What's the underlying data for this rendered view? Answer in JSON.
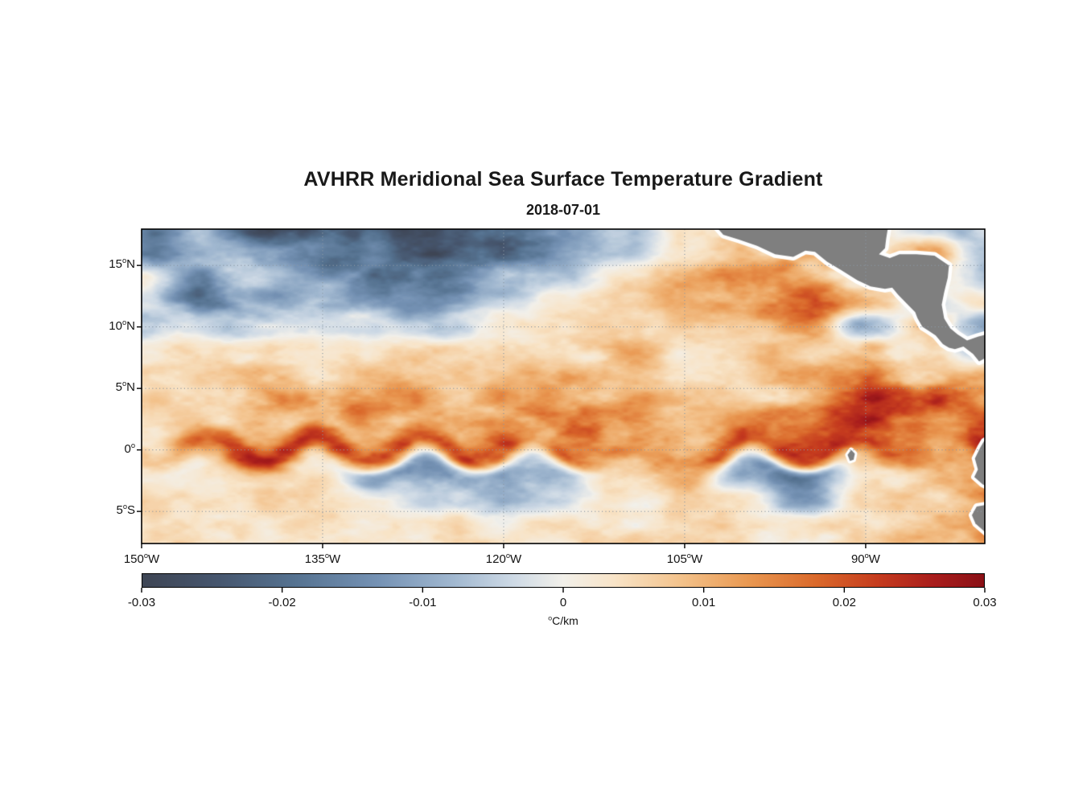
{
  "chart_data": {
    "type": "heatmap",
    "title": "AVHRR Meridional Sea Surface Temperature Gradient",
    "subtitle": "2018-07-01",
    "axes": {
      "lon_min": -150.0,
      "lon_max": -80.13,
      "lat_min": -7.61,
      "lat_max": 17.95,
      "grid": "dotted"
    },
    "x_ticks": [
      {
        "value": -150,
        "label": "150°W"
      },
      {
        "value": -135,
        "label": "135°W"
      },
      {
        "value": -120,
        "label": "120°W"
      },
      {
        "value": -105,
        "label": "105°W"
      },
      {
        "value": -90,
        "label": "90°W"
      }
    ],
    "y_ticks": [
      {
        "value": 15,
        "label": "15°N"
      },
      {
        "value": 10,
        "label": "10°N"
      },
      {
        "value": 5,
        "label": "5°N"
      },
      {
        "value": 0,
        "label": "0°"
      },
      {
        "value": -5,
        "label": "5°S"
      }
    ],
    "colorbar": {
      "min": -0.03,
      "max": 0.03,
      "ticks": [
        "-0.03",
        "-0.02",
        "-0.01",
        "0",
        "0.01",
        "0.02",
        "0.03"
      ],
      "label": "°C/km"
    },
    "colormap_stops": [
      [
        0.0,
        "#3e4554"
      ],
      [
        0.09,
        "#46566e"
      ],
      [
        0.18,
        "#557290"
      ],
      [
        0.28,
        "#7592b4"
      ],
      [
        0.37,
        "#a1b8d0"
      ],
      [
        0.44,
        "#cdd9e5"
      ],
      [
        0.5,
        "#f2f0ea"
      ],
      [
        0.56,
        "#f8e4c8"
      ],
      [
        0.64,
        "#f3c28b"
      ],
      [
        0.72,
        "#e99851"
      ],
      [
        0.8,
        "#da692b"
      ],
      [
        0.875,
        "#c53b1e"
      ],
      [
        0.94,
        "#a91d1c"
      ],
      [
        1.0,
        "#8a1016"
      ]
    ],
    "land_color": "#7f7f7f",
    "grid": {
      "units": "°C/km",
      "values_scale": 0.001,
      "lons": [
        -150,
        -145,
        -140,
        -135,
        -130,
        -125,
        -120,
        -115,
        -110,
        -105,
        -100,
        -95,
        -90,
        -85,
        -80
      ],
      "lats": [
        18,
        16,
        14,
        12,
        10,
        8,
        6,
        4,
        2,
        0,
        -2,
        -4,
        -6,
        -8
      ],
      "values": [
        [
          -15,
          -8,
          -24,
          -26,
          -22,
          -26,
          -24,
          -10,
          -6,
          2,
          6,
          15,
          2,
          -4,
          -6
        ],
        [
          -18,
          -6,
          -12,
          -20,
          -15,
          -28,
          -22,
          -12,
          -4,
          4,
          10,
          12,
          3,
          12,
          -8
        ],
        [
          2,
          -16,
          -6,
          -10,
          -18,
          -20,
          -8,
          -6,
          3,
          8,
          14,
          10,
          4,
          2,
          -6
        ],
        [
          -4,
          -18,
          -10,
          -10,
          -10,
          -12,
          -4,
          2,
          4,
          8,
          12,
          16,
          12,
          -6,
          4
        ],
        [
          -10,
          -4,
          -6,
          -4,
          -2,
          -4,
          2,
          3,
          4,
          6,
          8,
          14,
          -12,
          8,
          -10
        ],
        [
          4,
          5,
          6,
          4,
          5,
          6,
          4,
          5,
          10,
          4,
          6,
          5,
          10,
          4,
          -8
        ],
        [
          3,
          5,
          8,
          6,
          8,
          6,
          6,
          8,
          6,
          6,
          5,
          10,
          14,
          10,
          8
        ],
        [
          5,
          8,
          12,
          16,
          14,
          10,
          10,
          14,
          12,
          8,
          6,
          12,
          22,
          24,
          16
        ],
        [
          4,
          6,
          8,
          10,
          8,
          10,
          14,
          18,
          12,
          8,
          10,
          16,
          22,
          16,
          20
        ],
        [
          6,
          14,
          22,
          26,
          24,
          22,
          16,
          18,
          14,
          12,
          20,
          26,
          20,
          10,
          26
        ],
        [
          2,
          4,
          6,
          2,
          -10,
          -14,
          -10,
          -8,
          6,
          12,
          -10,
          -16,
          4,
          8,
          12
        ],
        [
          4,
          3,
          4,
          5,
          2,
          -6,
          -8,
          -4,
          3,
          4,
          2,
          -10,
          4,
          6,
          14
        ],
        [
          3,
          4,
          3,
          4,
          5,
          4,
          2,
          3,
          4,
          5,
          4,
          3,
          5,
          8,
          12
        ],
        [
          2,
          3,
          3,
          4,
          3,
          3,
          4,
          3,
          4,
          4,
          5,
          4,
          4,
          6,
          10
        ]
      ]
    },
    "land_polygons": {
      "central_america": [
        [
          -102.6,
          18.4
        ],
        [
          -101.8,
          17.5
        ],
        [
          -100.5,
          17.1
        ],
        [
          -99.0,
          16.6
        ],
        [
          -97.5,
          15.9
        ],
        [
          -96.0,
          15.7
        ],
        [
          -95.0,
          16.2
        ],
        [
          -94.2,
          16.1
        ],
        [
          -93.2,
          15.3
        ],
        [
          -92.0,
          14.6
        ],
        [
          -90.7,
          13.8
        ],
        [
          -89.6,
          13.3
        ],
        [
          -88.4,
          13.1
        ],
        [
          -87.8,
          13.2
        ],
        [
          -87.3,
          12.6
        ],
        [
          -86.7,
          12.0
        ],
        [
          -85.9,
          11.2
        ],
        [
          -85.7,
          10.7
        ],
        [
          -85.3,
          10.0
        ],
        [
          -84.8,
          9.7
        ],
        [
          -84.2,
          9.3
        ],
        [
          -83.6,
          8.6
        ],
        [
          -83.1,
          8.3
        ],
        [
          -82.6,
          8.2
        ],
        [
          -81.9,
          8.4
        ],
        [
          -81.1,
          7.8
        ],
        [
          -80.6,
          7.2
        ],
        [
          -80.0,
          7.5
        ],
        [
          -79.6,
          7.8
        ],
        [
          -79.6,
          9.5
        ],
        [
          -80.7,
          9.2
        ],
        [
          -81.6,
          8.9
        ],
        [
          -82.4,
          9.4
        ],
        [
          -83.0,
          9.9
        ],
        [
          -83.5,
          10.7
        ],
        [
          -83.7,
          11.8
        ],
        [
          -83.5,
          12.8
        ],
        [
          -83.2,
          14.0
        ],
        [
          -83.1,
          15.0
        ],
        [
          -84.3,
          15.8
        ],
        [
          -85.8,
          15.9
        ],
        [
          -87.2,
          15.9
        ],
        [
          -88.0,
          15.6
        ],
        [
          -88.9,
          15.9
        ],
        [
          -88.4,
          16.4
        ],
        [
          -88.3,
          17.2
        ],
        [
          -88.1,
          18.4
        ]
      ],
      "ecuador": [
        [
          -79.6,
          1.0
        ],
        [
          -80.2,
          0.7
        ],
        [
          -80.5,
          0.2
        ],
        [
          -80.95,
          -0.7
        ],
        [
          -80.7,
          -1.6
        ],
        [
          -81.0,
          -2.2
        ],
        [
          -80.3,
          -2.8
        ],
        [
          -79.6,
          -3.1
        ]
      ],
      "peru": [
        [
          -79.6,
          -4.4
        ],
        [
          -80.8,
          -4.6
        ],
        [
          -81.2,
          -5.3
        ],
        [
          -80.9,
          -6.0
        ],
        [
          -80.2,
          -6.6
        ],
        [
          -79.6,
          -7.1
        ]
      ],
      "galapagos": [
        [
          -91.5,
          -0.4
        ],
        [
          -91.2,
          0.0
        ],
        [
          -90.9,
          -0.3
        ],
        [
          -91.0,
          -0.8
        ],
        [
          -91.3,
          -0.9
        ]
      ]
    }
  }
}
